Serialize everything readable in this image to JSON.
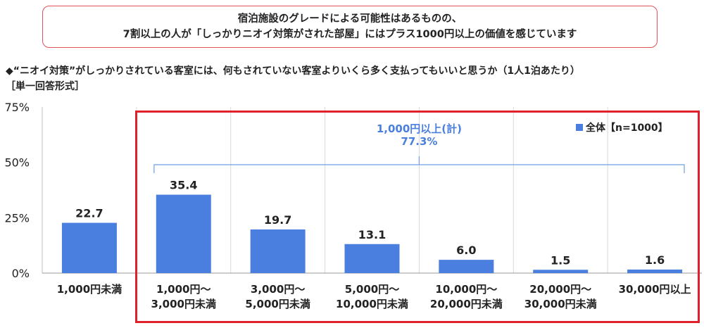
{
  "callout": {
    "line1": "宿泊施設のグレードによる可能性はあるものの、",
    "line2": "7割以上の人が「しっかりニオイ対策がされた部屋」にはプラス1000円以上の価値を感じています"
  },
  "question": "◆“ニオイ対策”がしっかりされている客室には、何もされていない客室よりいくら多く支払ってもいいと思うか（1人1泊あたり）",
  "answer_format": "［単一回答形式］",
  "chart_data": {
    "type": "bar",
    "categories": [
      [
        "1,000円未満"
      ],
      [
        "1,000円～",
        "3,000円未満"
      ],
      [
        "3,000円～",
        "5,000円未満"
      ],
      [
        "5,000円～",
        "10,000円未満"
      ],
      [
        "10,000円～",
        "20,000円未満"
      ],
      [
        "20,000円～",
        "30,000円未満"
      ],
      [
        "30,000円以上"
      ]
    ],
    "series": [
      {
        "name": "全体【n=1000】",
        "values": [
          22.7,
          35.4,
          19.7,
          13.1,
          6.0,
          1.5,
          1.6
        ]
      }
    ],
    "value_labels": [
      "22.7",
      "35.4",
      "19.7",
      "13.1",
      "6.0",
      "1.5",
      "1.6"
    ],
    "ylim": [
      0,
      75
    ],
    "yticks": [
      "0%",
      "25%",
      "50%",
      "75%"
    ],
    "ytick_values": [
      0,
      25,
      50,
      75
    ],
    "grid": "vertical",
    "legend": "top-right",
    "bar_color": "#4a7fe0",
    "annotation": {
      "line1": "1,000円以上(計)",
      "line2": "77.3%",
      "color": "#4a7fe0",
      "span_categories": [
        1,
        6
      ]
    },
    "highlight_color": "#e0202a"
  }
}
